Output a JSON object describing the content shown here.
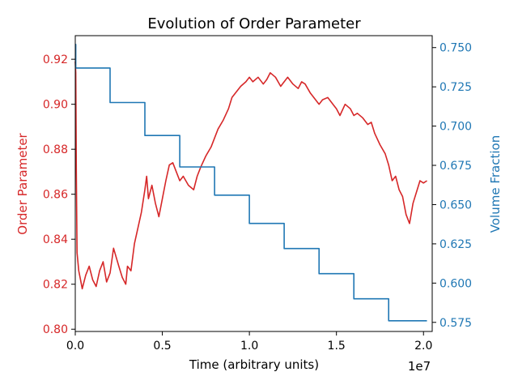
{
  "chart_data": {
    "type": "line",
    "title": "Evolution of Order Parameter",
    "xlabel": "Time (arbitrary units)",
    "x_offset_label": "1e7",
    "xlim": [
      0,
      2.05
    ],
    "xticks": [
      0.0,
      0.5,
      1.0,
      1.5,
      2.0
    ],
    "xtick_labels": [
      "0.0",
      "0.5",
      "1.0",
      "1.5",
      "2.0"
    ],
    "colors": {
      "left": "#d62728",
      "right": "#1f77b4",
      "axis": "#000000"
    },
    "left_axis": {
      "label": "Order Parameter",
      "ylim": [
        0.799,
        0.9305
      ],
      "ticks": [
        0.8,
        0.82,
        0.84,
        0.86,
        0.88,
        0.9,
        0.92
      ],
      "tick_labels": [
        "0.80",
        "0.82",
        "0.84",
        "0.86",
        "0.88",
        "0.90",
        "0.92"
      ]
    },
    "right_axis": {
      "label": "Volume Fraction",
      "ylim": [
        0.5692,
        0.7576
      ],
      "ticks": [
        0.575,
        0.6,
        0.625,
        0.65,
        0.675,
        0.7,
        0.725,
        0.75
      ],
      "tick_labels": [
        "0.575",
        "0.600",
        "0.625",
        "0.650",
        "0.675",
        "0.700",
        "0.725",
        "0.750"
      ]
    },
    "series": [
      {
        "name": "Order Parameter",
        "axis": "left",
        "x": [
          0.0,
          0.003,
          0.006,
          0.01,
          0.02,
          0.03,
          0.04,
          0.06,
          0.08,
          0.1,
          0.12,
          0.14,
          0.16,
          0.18,
          0.2,
          0.22,
          0.25,
          0.27,
          0.29,
          0.3,
          0.32,
          0.34,
          0.36,
          0.38,
          0.4,
          0.41,
          0.42,
          0.44,
          0.46,
          0.48,
          0.5,
          0.52,
          0.54,
          0.56,
          0.58,
          0.6,
          0.62,
          0.65,
          0.68,
          0.7,
          0.72,
          0.75,
          0.78,
          0.8,
          0.82,
          0.85,
          0.88,
          0.9,
          0.92,
          0.95,
          0.98,
          1.0,
          1.02,
          1.05,
          1.08,
          1.1,
          1.12,
          1.15,
          1.18,
          1.2,
          1.22,
          1.25,
          1.28,
          1.3,
          1.32,
          1.35,
          1.38,
          1.4,
          1.42,
          1.45,
          1.48,
          1.5,
          1.52,
          1.55,
          1.58,
          1.6,
          1.62,
          1.65,
          1.68,
          1.7,
          1.72,
          1.75,
          1.78,
          1.8,
          1.82,
          1.84,
          1.86,
          1.88,
          1.9,
          1.92,
          1.94,
          1.96,
          1.98,
          2.0,
          2.02
        ],
        "y": [
          0.919,
          0.914,
          0.87,
          0.834,
          0.826,
          0.822,
          0.818,
          0.824,
          0.828,
          0.822,
          0.819,
          0.826,
          0.83,
          0.821,
          0.825,
          0.836,
          0.828,
          0.823,
          0.82,
          0.828,
          0.826,
          0.838,
          0.845,
          0.852,
          0.862,
          0.868,
          0.858,
          0.864,
          0.856,
          0.85,
          0.858,
          0.866,
          0.873,
          0.874,
          0.87,
          0.866,
          0.868,
          0.864,
          0.862,
          0.868,
          0.872,
          0.877,
          0.881,
          0.885,
          0.889,
          0.893,
          0.898,
          0.903,
          0.905,
          0.908,
          0.91,
          0.912,
          0.91,
          0.912,
          0.909,
          0.911,
          0.914,
          0.912,
          0.908,
          0.91,
          0.912,
          0.909,
          0.907,
          0.91,
          0.909,
          0.905,
          0.902,
          0.9,
          0.902,
          0.903,
          0.9,
          0.898,
          0.895,
          0.9,
          0.898,
          0.895,
          0.896,
          0.894,
          0.891,
          0.892,
          0.887,
          0.882,
          0.878,
          0.873,
          0.866,
          0.868,
          0.862,
          0.859,
          0.851,
          0.847,
          0.856,
          0.861,
          0.866,
          0.865,
          0.866
        ]
      },
      {
        "name": "Volume Fraction",
        "axis": "right",
        "step": "post",
        "x": [
          0.0,
          0.003,
          0.2,
          0.4,
          0.6,
          0.8,
          1.0,
          1.2,
          1.4,
          1.6,
          1.8,
          2.02
        ],
        "y": [
          0.752,
          0.737,
          0.715,
          0.694,
          0.674,
          0.656,
          0.638,
          0.622,
          0.606,
          0.59,
          0.576,
          0.576
        ]
      }
    ]
  }
}
